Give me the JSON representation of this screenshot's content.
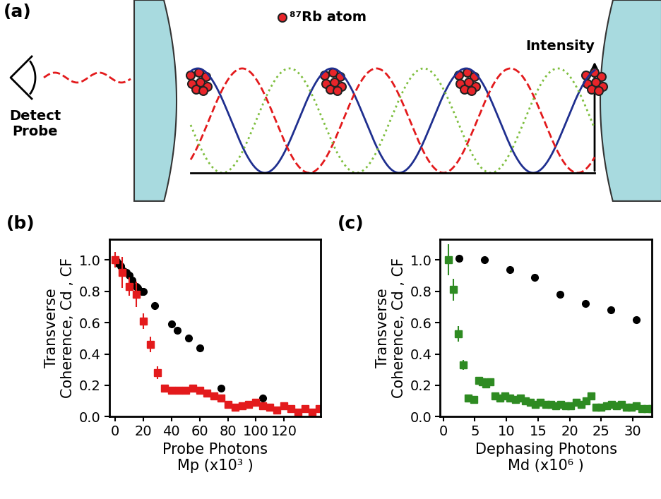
{
  "diagram": {
    "label": "(a)",
    "atom_label": "⁸⁷Rb atom",
    "intensity_label": "Intensity",
    "detector_label": "Detect\nProbe"
  },
  "chart_data": [
    {
      "type": "scatter",
      "title": "(b)",
      "xlabel": "Probe Photons\nMp (x10³ )",
      "ylabel": "Transverse\nCoherence, Cd , CF",
      "xlim": [
        -4,
        146
      ],
      "xticks": [
        0,
        20,
        40,
        60,
        80,
        100,
        120
      ],
      "ylim": [
        0,
        1.13
      ],
      "yticks": [
        {
          "value": 0,
          "label": "0.0"
        },
        {
          "value": 0.2,
          "label": "0.2"
        },
        {
          "value": 0.4,
          "label": "0.4"
        },
        {
          "value": 0.6,
          "label": "0.6"
        },
        {
          "value": 0.8,
          "label": "0.8"
        },
        {
          "value": 1.0,
          "label": "1.0"
        }
      ],
      "series": [
        {
          "color": "#000000",
          "marker": "circle",
          "x": [
            0,
            1,
            2,
            4,
            6,
            8,
            10,
            12,
            15,
            16,
            19,
            20,
            28,
            40,
            44,
            52,
            60,
            75,
            105
          ],
          "values": [
            1.0,
            0.99,
            0.98,
            0.96,
            0.93,
            0.92,
            0.9,
            0.87,
            0.83,
            0.82,
            0.8,
            0.8,
            0.71,
            0.59,
            0.55,
            0.5,
            0.44,
            0.18,
            0.12
          ]
        },
        {
          "color": "#e31a1c",
          "marker": "square",
          "x": [
            0,
            5,
            10,
            15,
            20,
            25,
            30,
            35,
            40,
            45,
            50,
            55,
            60,
            65,
            70,
            75,
            80,
            85,
            90,
            95,
            100,
            105,
            110,
            115,
            120,
            125,
            130,
            135,
            140,
            145
          ],
          "values": [
            1.0,
            0.92,
            0.83,
            0.78,
            0.61,
            0.46,
            0.28,
            0.18,
            0.17,
            0.17,
            0.17,
            0.18,
            0.17,
            0.15,
            0.13,
            0.12,
            0.08,
            0.06,
            0.07,
            0.08,
            0.09,
            0.07,
            0.06,
            0.04,
            0.07,
            0.05,
            0.03,
            0.05,
            0.03,
            0.05
          ],
          "errors": [
            0.05,
            0.1,
            0.06,
            0.08,
            0.05,
            0.05,
            0.04,
            0.02,
            0.02,
            0.02,
            0.02,
            0.02,
            0.02,
            0.01,
            0.01,
            0.01,
            0.01,
            0.01,
            0.01,
            0.01,
            0.01,
            0.01,
            0.01,
            0.01,
            0.01,
            0.01,
            0.01,
            0.01,
            0.01,
            0.01
          ]
        }
      ]
    },
    {
      "type": "scatter",
      "title": "(c)",
      "xlabel": "Dephasing Photons\nMd (x10⁶ )",
      "ylabel": "Transverse\nCoherence, Cd , CF",
      "xlim": [
        -0.5,
        33
      ],
      "xticks": [
        0,
        5,
        10,
        15,
        20,
        25,
        30
      ],
      "ylim": [
        0,
        1.13
      ],
      "yticks": [
        {
          "value": 0,
          "label": "0.0"
        },
        {
          "value": 0.2,
          "label": "0.2"
        },
        {
          "value": 0.4,
          "label": "0.4"
        },
        {
          "value": 0.6,
          "label": "0.6"
        },
        {
          "value": 0.8,
          "label": "0.8"
        },
        {
          "value": 1.0,
          "label": "1.0"
        }
      ],
      "series": [
        {
          "color": "#000000",
          "marker": "circle",
          "x": [
            2.5,
            6.5,
            10.5,
            14.5,
            18.5,
            22.5,
            26.5,
            30.5
          ],
          "values": [
            1.01,
            1.0,
            0.94,
            0.89,
            0.78,
            0.72,
            0.68,
            0.62
          ]
        },
        {
          "color": "#2e8b22",
          "marker": "square",
          "x": [
            0.8,
            1.6,
            2.4,
            3.2,
            4.0,
            4.8,
            5.6,
            6.2,
            6.8,
            7.4,
            8.2,
            9.0,
            9.8,
            10.6,
            11.4,
            12.2,
            13.0,
            13.8,
            14.6,
            15.4,
            16.2,
            17.0,
            17.8,
            18.6,
            19.4,
            20.2,
            21.0,
            21.8,
            22.6,
            23.4,
            24.2,
            25.0,
            25.8,
            26.6,
            27.4,
            28.2,
            29.0,
            29.8,
            30.6,
            31.4,
            32.2,
            33.0
          ],
          "values": [
            1.0,
            0.81,
            0.53,
            0.33,
            0.12,
            0.11,
            0.23,
            0.22,
            0.21,
            0.22,
            0.13,
            0.12,
            0.13,
            0.12,
            0.11,
            0.12,
            0.1,
            0.09,
            0.08,
            0.09,
            0.08,
            0.08,
            0.07,
            0.08,
            0.07,
            0.07,
            0.09,
            0.08,
            0.1,
            0.13,
            0.06,
            0.06,
            0.07,
            0.08,
            0.07,
            0.08,
            0.06,
            0.06,
            0.07,
            0.05,
            0.05,
            0.05
          ],
          "errors": [
            0.1,
            0.07,
            0.05,
            0.03,
            0.02,
            0.02,
            0.02,
            0.02,
            0.02,
            0.02,
            0.01,
            0.01,
            0.01,
            0.01,
            0.01,
            0.01,
            0.01,
            0.01,
            0.01,
            0.01,
            0.01,
            0.01,
            0.01,
            0.01,
            0.01,
            0.01,
            0.01,
            0.01,
            0.01,
            0.01,
            0.01,
            0.01,
            0.01,
            0.01,
            0.01,
            0.01,
            0.01,
            0.01,
            0.01,
            0.01,
            0.01,
            0.01
          ]
        }
      ]
    }
  ]
}
